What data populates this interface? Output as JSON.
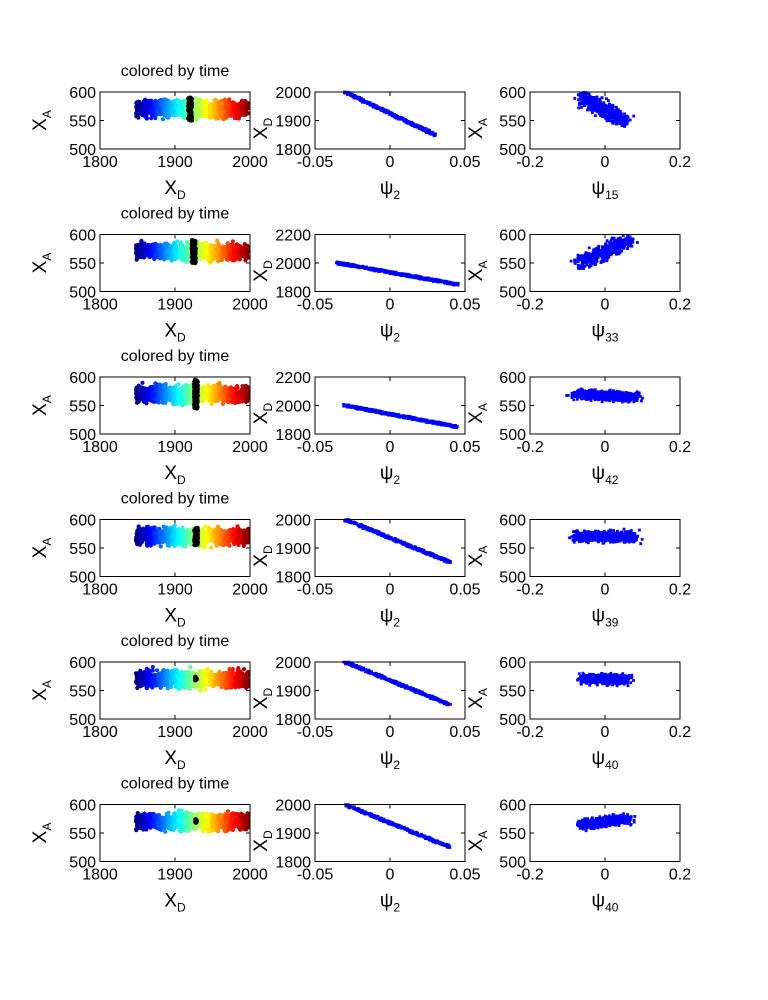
{
  "figure": {
    "rows": 6,
    "cols": 3,
    "colors": {
      "axis": "#000000",
      "blue_points": "#0000ff",
      "highlight": "#000000",
      "background": "#ffffff"
    },
    "colormap": "jet"
  },
  "chart_data": [
    {
      "type": "scatter",
      "row": 0,
      "col": 0,
      "title": "colored by time",
      "xlabel": "X",
      "xlabel_sub": "D",
      "ylabel": "X",
      "ylabel_sub": "A",
      "xlim": [
        1800,
        2000
      ],
      "ylim": [
        500,
        600
      ],
      "xticks": [
        "1800",
        "1900",
        "2000"
      ],
      "yticks": [
        "500",
        "550",
        "600"
      ],
      "color_by": "time",
      "highlight_x": 1920,
      "highlight_y_range": [
        550,
        590
      ]
    },
    {
      "type": "scatter",
      "row": 0,
      "col": 1,
      "title": "",
      "xlabel": "ψ",
      "xlabel_sub": "2",
      "ylabel": "X",
      "ylabel_sub": "D",
      "xlim": [
        -0.05,
        0.05
      ],
      "ylim": [
        1800,
        2000
      ],
      "xticks": [
        "-0.05",
        "0",
        "0.05"
      ],
      "yticks": [
        "1800",
        "1900",
        "2000"
      ],
      "series": [
        {
          "from": [
            -0.03,
            2000
          ],
          "to": [
            0.03,
            1850
          ]
        }
      ]
    },
    {
      "type": "scatter",
      "row": 0,
      "col": 2,
      "title": "",
      "xlabel": "ψ",
      "xlabel_sub": "15",
      "ylabel": "X",
      "ylabel_sub": "A",
      "xlim": [
        -0.2,
        0.2
      ],
      "ylim": [
        500,
        600
      ],
      "xticks": [
        "-0.2",
        "0",
        "0.2"
      ],
      "yticks": [
        "500",
        "550",
        "600"
      ],
      "series": [
        {
          "from": [
            -0.06,
            590
          ],
          "to": [
            0.05,
            550
          ],
          "spread": [
            0.04,
            18
          ]
        }
      ]
    },
    {
      "type": "scatter",
      "row": 1,
      "col": 0,
      "title": "colored by time",
      "xlabel": "X",
      "xlabel_sub": "D",
      "ylabel": "X",
      "ylabel_sub": "A",
      "xlim": [
        1800,
        2000
      ],
      "ylim": [
        500,
        600
      ],
      "xticks": [
        "1800",
        "1900",
        "2000"
      ],
      "yticks": [
        "500",
        "550",
        "600"
      ],
      "color_by": "time",
      "highlight_x": 1925,
      "highlight_y_range": [
        550,
        590
      ]
    },
    {
      "type": "scatter",
      "row": 1,
      "col": 1,
      "title": "",
      "xlabel": "ψ",
      "xlabel_sub": "2",
      "ylabel": "X",
      "ylabel_sub": "D",
      "xlim": [
        -0.05,
        0.05
      ],
      "ylim": [
        1800,
        2200
      ],
      "xticks": [
        "-0.05",
        "0",
        "0.05"
      ],
      "yticks": [
        "1800",
        "2000",
        "2200"
      ],
      "series": [
        {
          "from": [
            -0.035,
            2000
          ],
          "to": [
            0.045,
            1850
          ]
        }
      ]
    },
    {
      "type": "scatter",
      "row": 1,
      "col": 2,
      "title": "",
      "xlabel": "ψ",
      "xlabel_sub": "33",
      "ylabel": "X",
      "ylabel_sub": "A",
      "xlim": [
        -0.2,
        0.2
      ],
      "ylim": [
        500,
        600
      ],
      "xticks": [
        "-0.2",
        "0",
        "0.2"
      ],
      "yticks": [
        "500",
        "550",
        "600"
      ],
      "series": [
        {
          "from": [
            -0.06,
            550
          ],
          "to": [
            0.06,
            590
          ],
          "spread": [
            0.05,
            18
          ]
        }
      ]
    },
    {
      "type": "scatter",
      "row": 2,
      "col": 0,
      "title": "colored by time",
      "xlabel": "X",
      "xlabel_sub": "D",
      "ylabel": "X",
      "ylabel_sub": "A",
      "xlim": [
        1800,
        2000
      ],
      "ylim": [
        500,
        600
      ],
      "xticks": [
        "1800",
        "1900",
        "2000"
      ],
      "yticks": [
        "500",
        "550",
        "600"
      ],
      "color_by": "time",
      "highlight_x": 1928,
      "highlight_y_range": [
        545,
        595
      ]
    },
    {
      "type": "scatter",
      "row": 2,
      "col": 1,
      "title": "",
      "xlabel": "ψ",
      "xlabel_sub": "2",
      "ylabel": "X",
      "ylabel_sub": "D",
      "xlim": [
        -0.05,
        0.05
      ],
      "ylim": [
        1800,
        2200
      ],
      "xticks": [
        "-0.05",
        "0",
        "0.05"
      ],
      "yticks": [
        "1800",
        "2000",
        "2200"
      ],
      "series": [
        {
          "from": [
            -0.03,
            2000
          ],
          "to": [
            0.045,
            1850
          ]
        }
      ]
    },
    {
      "type": "scatter",
      "row": 2,
      "col": 2,
      "title": "",
      "xlabel": "ψ",
      "xlabel_sub": "42",
      "ylabel": "X",
      "ylabel_sub": "A",
      "xlim": [
        -0.2,
        0.2
      ],
      "ylim": [
        500,
        600
      ],
      "xticks": [
        "-0.2",
        "0",
        "0.2"
      ],
      "yticks": [
        "500",
        "550",
        "600"
      ],
      "series": [
        {
          "from": [
            -0.08,
            570
          ],
          "to": [
            0.08,
            565
          ],
          "spread": [
            0.04,
            14
          ]
        }
      ]
    },
    {
      "type": "scatter",
      "row": 3,
      "col": 0,
      "title": "colored by time",
      "xlabel": "X",
      "xlabel_sub": "D",
      "ylabel": "X",
      "ylabel_sub": "A",
      "xlim": [
        1800,
        2000
      ],
      "ylim": [
        500,
        600
      ],
      "xticks": [
        "1800",
        "1900",
        "2000"
      ],
      "yticks": [
        "500",
        "550",
        "600"
      ],
      "color_by": "time",
      "highlight_x": 1928,
      "highlight_y_range": [
        555,
        585
      ]
    },
    {
      "type": "scatter",
      "row": 3,
      "col": 1,
      "title": "",
      "xlabel": "ψ",
      "xlabel_sub": "2",
      "ylabel": "X",
      "ylabel_sub": "D",
      "xlim": [
        -0.05,
        0.05
      ],
      "ylim": [
        1800,
        2000
      ],
      "xticks": [
        "-0.05",
        "0",
        "0.05"
      ],
      "yticks": [
        "1800",
        "1900",
        "2000"
      ],
      "series": [
        {
          "from": [
            -0.03,
            2000
          ],
          "to": [
            0.04,
            1850
          ]
        }
      ]
    },
    {
      "type": "scatter",
      "row": 3,
      "col": 2,
      "title": "",
      "xlabel": "ψ",
      "xlabel_sub": "39",
      "ylabel": "X",
      "ylabel_sub": "A",
      "xlim": [
        -0.2,
        0.2
      ],
      "ylim": [
        500,
        600
      ],
      "xticks": [
        "-0.2",
        "0",
        "0.2"
      ],
      "yticks": [
        "500",
        "550",
        "600"
      ],
      "series": [
        {
          "from": [
            -0.08,
            570
          ],
          "to": [
            0.08,
            570
          ],
          "spread": [
            0.03,
            16
          ]
        }
      ]
    },
    {
      "type": "scatter",
      "row": 4,
      "col": 0,
      "title": "colored by time",
      "xlabel": "X",
      "xlabel_sub": "D",
      "ylabel": "X",
      "ylabel_sub": "A",
      "xlim": [
        1800,
        2000
      ],
      "ylim": [
        500,
        600
      ],
      "xticks": [
        "1800",
        "1900",
        "2000"
      ],
      "yticks": [
        "500",
        "550",
        "600"
      ],
      "color_by": "time",
      "highlight_x": 1928,
      "highlight_y_range": [
        568,
        574
      ]
    },
    {
      "type": "scatter",
      "row": 4,
      "col": 1,
      "title": "",
      "xlabel": "ψ",
      "xlabel_sub": "2",
      "ylabel": "X",
      "ylabel_sub": "D",
      "xlim": [
        -0.05,
        0.05
      ],
      "ylim": [
        1800,
        2000
      ],
      "xticks": [
        "-0.05",
        "0",
        "0.05"
      ],
      "yticks": [
        "1800",
        "1900",
        "2000"
      ],
      "series": [
        {
          "from": [
            -0.03,
            2000
          ],
          "to": [
            0.04,
            1850
          ]
        }
      ]
    },
    {
      "type": "scatter",
      "row": 4,
      "col": 2,
      "title": "",
      "xlabel": "ψ",
      "xlabel_sub": "40",
      "ylabel": "X",
      "ylabel_sub": "A",
      "xlim": [
        -0.2,
        0.2
      ],
      "ylim": [
        500,
        600
      ],
      "xticks": [
        "-0.2",
        "0",
        "0.2"
      ],
      "yticks": [
        "500",
        "550",
        "600"
      ],
      "series": [
        {
          "from": [
            -0.06,
            570
          ],
          "to": [
            0.06,
            570
          ],
          "spread": [
            0.03,
            14
          ]
        }
      ]
    },
    {
      "type": "scatter",
      "row": 5,
      "col": 0,
      "title": "colored by time",
      "xlabel": "X",
      "xlabel_sub": "D",
      "ylabel": "X",
      "ylabel_sub": "A",
      "xlim": [
        1800,
        2000
      ],
      "ylim": [
        500,
        600
      ],
      "xticks": [
        "1800",
        "1900",
        "2000"
      ],
      "yticks": [
        "500",
        "550",
        "600"
      ],
      "color_by": "time",
      "highlight_x": 1928,
      "highlight_y_range": [
        568,
        574
      ]
    },
    {
      "type": "scatter",
      "row": 5,
      "col": 1,
      "title": "",
      "xlabel": "ψ",
      "xlabel_sub": "2",
      "ylabel": "X",
      "ylabel_sub": "D",
      "xlim": [
        -0.05,
        0.05
      ],
      "ylim": [
        1800,
        2000
      ],
      "xticks": [
        "-0.05",
        "0",
        "0.05"
      ],
      "yticks": [
        "1800",
        "1900",
        "2000"
      ],
      "series": [
        {
          "from": [
            -0.03,
            2000
          ],
          "to": [
            0.04,
            1850
          ]
        }
      ]
    },
    {
      "type": "scatter",
      "row": 5,
      "col": 2,
      "title": "",
      "xlabel": "ψ",
      "xlabel_sub": "40",
      "ylabel": "X",
      "ylabel_sub": "A",
      "xlim": [
        -0.2,
        0.2
      ],
      "ylim": [
        500,
        600
      ],
      "xticks": [
        "-0.2",
        "0",
        "0.2"
      ],
      "yticks": [
        "500",
        "550",
        "600"
      ],
      "series": [
        {
          "from": [
            -0.06,
            565
          ],
          "to": [
            0.06,
            575
          ],
          "spread": [
            0.035,
            14
          ]
        }
      ]
    }
  ]
}
